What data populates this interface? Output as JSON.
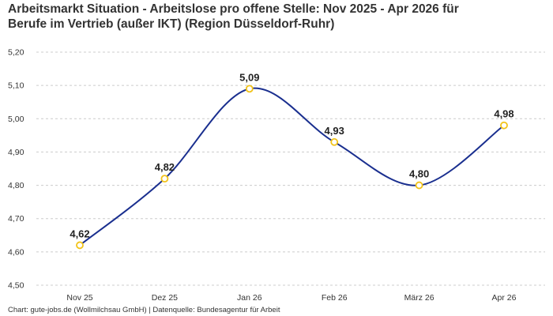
{
  "title_line1": "Arbeitsmarkt Situation - Arbeitslose pro offene Stelle: Nov 2025 - Apr 2026 für",
  "title_line2": "Berufe im Vertrieb (außer IKT) (Region Düsseldorf-Ruhr)",
  "footer": "Chart: gute-jobs.de (Wollmilchsau GmbH) | Datenquelle: Bundesagentur für Arbeit",
  "colors": {
    "line": "#1a2f8f",
    "marker_stroke": "#f2c318",
    "marker_fill": "#ffffff",
    "grid": "#cccccc"
  },
  "chart_data": {
    "type": "line",
    "categories": [
      "Nov 25",
      "Dez 25",
      "Jan 26",
      "Feb 26",
      "März 26",
      "Apr 26"
    ],
    "values": [
      4.62,
      4.82,
      5.09,
      4.93,
      4.8,
      4.98
    ],
    "value_labels": [
      "4,62",
      "4,82",
      "5,09",
      "4,93",
      "4,80",
      "4,98"
    ],
    "y_ticks": [
      4.5,
      4.6,
      4.7,
      4.8,
      4.9,
      5.0,
      5.1,
      5.2
    ],
    "y_tick_labels": [
      "4,50",
      "4,60",
      "4,70",
      "4,80",
      "4,90",
      "5,00",
      "5,10",
      "5,20"
    ],
    "ylim": [
      4.5,
      5.2
    ],
    "grid": true,
    "smooth": true
  }
}
